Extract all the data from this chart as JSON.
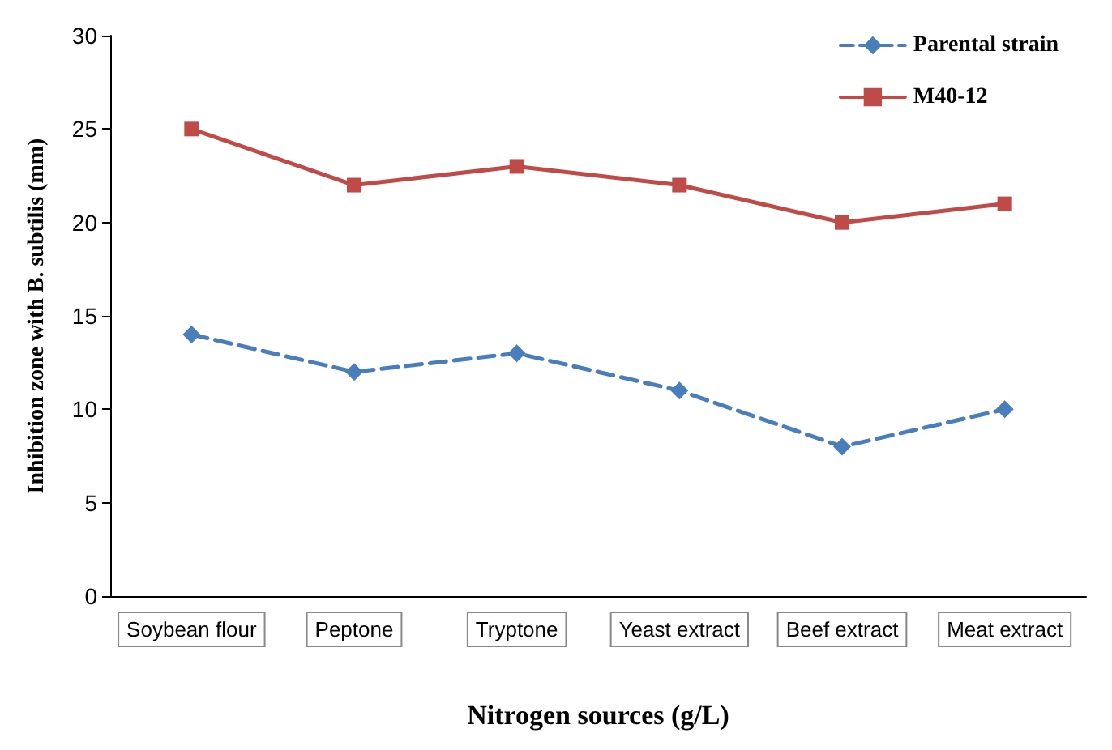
{
  "chart_data": {
    "type": "line",
    "xlabel": "Nitrogen sources (g/L)",
    "ylabel": "Inhibition zone with B. subtilis (mm)",
    "categories": [
      "Soybean flour",
      "Peptone",
      "Tryptone",
      "Yeast extract",
      "Beef extract",
      "Meat extract"
    ],
    "series": [
      {
        "name": "Parental strain",
        "color": "#4a7ebb",
        "marker": "diamond",
        "line_style": "dashed",
        "values": [
          14,
          12,
          13,
          11,
          8,
          10
        ]
      },
      {
        "name": "M40-12",
        "color": "#be4b48",
        "marker": "square",
        "line_style": "solid",
        "values": [
          25,
          22,
          23,
          22,
          20,
          21
        ]
      }
    ],
    "ylim": [
      0,
      30
    ],
    "yticks": [
      0,
      5,
      10,
      15,
      20,
      25,
      30
    ],
    "grid": false,
    "legend": "top right"
  }
}
